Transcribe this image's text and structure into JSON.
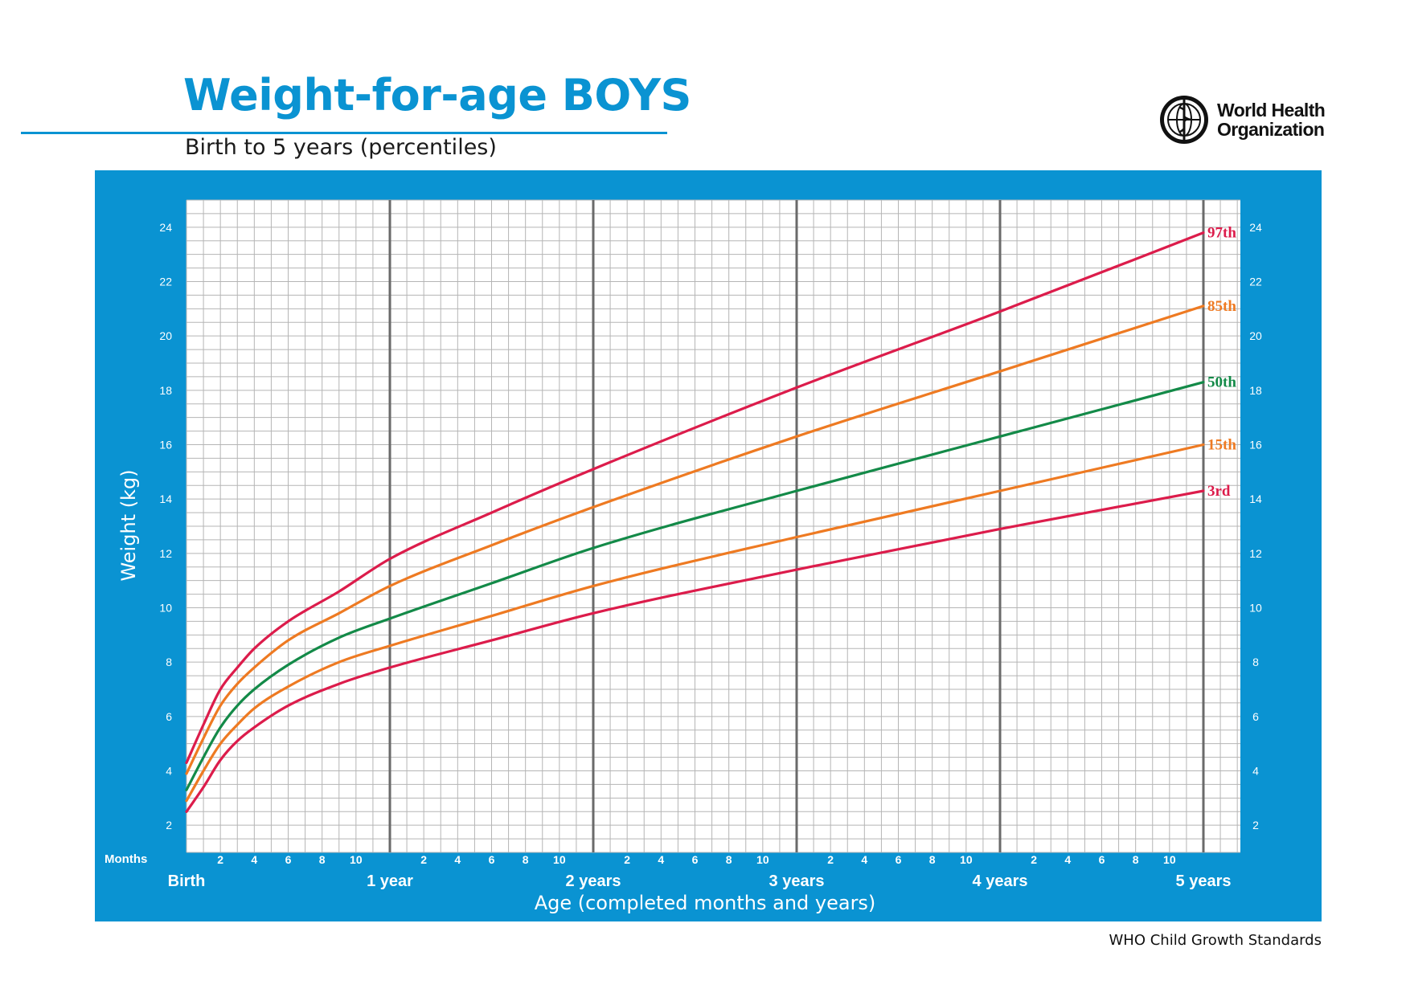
{
  "header": {
    "title": "Weight-for-age BOYS",
    "subtitle": "Birth to 5 years (percentiles)"
  },
  "logo": {
    "line1": "World Health",
    "line2": "Organization"
  },
  "footer": {
    "text": "WHO Child Growth Standards"
  },
  "colors": {
    "panel": "#0a93d2",
    "red": "#dc1c4b",
    "orange": "#ee7a22",
    "green": "#138a48"
  },
  "chart_data": {
    "type": "line",
    "title": "Weight-for-age BOYS",
    "subtitle": "Birth to 5 years (percentiles)",
    "xlabel": "Age (completed months and years)",
    "ylabel": "Weight (kg)",
    "xlim": [
      0,
      60
    ],
    "ylim": [
      1,
      25
    ],
    "grid": true,
    "months_label": "Months",
    "month_ticks": [
      2,
      4,
      6,
      8,
      10
    ],
    "year_labels": [
      "Birth",
      "1 year",
      "2 years",
      "3 years",
      "4 years",
      "5 years"
    ],
    "y_ticks": [
      2,
      4,
      6,
      8,
      10,
      12,
      14,
      16,
      18,
      20,
      22,
      24
    ],
    "x": [
      0,
      1,
      2,
      3,
      4,
      6,
      9,
      12,
      18,
      24,
      36,
      48,
      60
    ],
    "series": [
      {
        "name": "97th",
        "color": "#dc1c4b",
        "values": [
          4.3,
          5.7,
          7.0,
          7.8,
          8.5,
          9.5,
          10.6,
          11.8,
          13.5,
          15.1,
          18.1,
          20.9,
          23.8
        ]
      },
      {
        "name": "85th",
        "color": "#ee7a22",
        "values": [
          3.9,
          5.2,
          6.4,
          7.2,
          7.8,
          8.8,
          9.8,
          10.8,
          12.3,
          13.7,
          16.3,
          18.7,
          21.1
        ]
      },
      {
        "name": "50th",
        "color": "#138a48",
        "values": [
          3.3,
          4.5,
          5.6,
          6.4,
          7.0,
          7.9,
          8.9,
          9.6,
          10.9,
          12.2,
          14.3,
          16.3,
          18.3
        ]
      },
      {
        "name": "15th",
        "color": "#ee7a22",
        "values": [
          2.9,
          4.0,
          5.0,
          5.7,
          6.3,
          7.1,
          8.0,
          8.6,
          9.7,
          10.8,
          12.6,
          14.3,
          16.0
        ]
      },
      {
        "name": "3rd",
        "color": "#dc1c4b",
        "values": [
          2.5,
          3.4,
          4.4,
          5.1,
          5.6,
          6.4,
          7.2,
          7.8,
          8.8,
          9.8,
          11.4,
          12.9,
          14.3
        ]
      }
    ]
  }
}
